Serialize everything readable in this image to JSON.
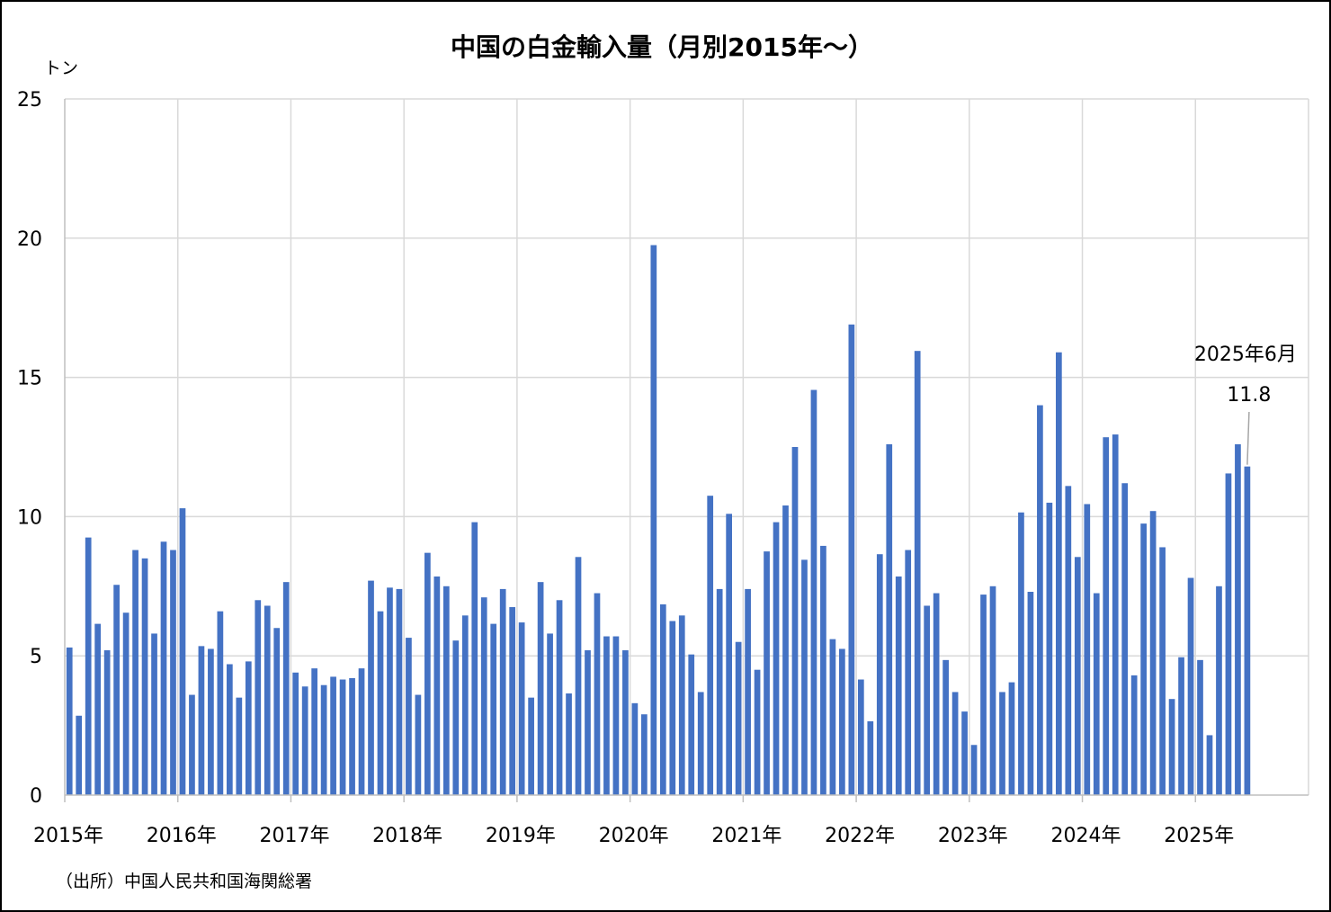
{
  "chart_data": {
    "type": "bar",
    "title": "中国の白金輸入量（月別2015年～）",
    "y_unit": "トン",
    "ylim": [
      0,
      25
    ],
    "y_ticks": [
      "0",
      "5",
      "10",
      "15",
      "20",
      "25"
    ],
    "x_tick_labels": [
      "2015年",
      "2016年",
      "2017年",
      "2018年",
      "2019年",
      "2020年",
      "2021年",
      "2022年",
      "2023年",
      "2024年",
      "2025年"
    ],
    "grid": true,
    "color": "#4472C4",
    "series": [
      {
        "values": [
          5.3,
          2.85,
          9.25,
          6.15,
          5.2,
          7.55,
          6.55,
          8.8,
          8.5,
          5.8,
          9.1,
          8.8,
          10.3,
          3.6,
          5.35,
          5.25,
          6.6,
          4.7,
          3.5,
          4.8,
          7.0,
          6.8,
          6.0,
          7.65,
          4.4,
          3.9,
          4.55,
          3.95,
          4.25,
          4.15,
          4.2,
          4.55,
          7.7,
          6.6,
          7.45,
          7.4,
          5.65,
          3.6,
          8.7,
          7.85,
          7.5,
          5.55,
          6.45,
          9.8,
          7.1,
          6.15,
          7.4,
          6.75,
          6.2,
          3.5,
          7.65,
          5.8,
          7.0,
          3.65,
          8.55,
          5.2,
          7.25,
          5.7,
          5.7,
          5.2,
          3.3,
          2.9,
          19.75,
          6.85,
          6.25,
          6.45,
          5.05,
          3.7,
          10.75,
          7.4,
          10.1,
          5.5,
          7.4,
          4.5,
          8.75,
          9.8,
          10.4,
          12.5,
          8.45,
          14.55,
          8.95,
          5.6,
          5.25,
          16.9,
          4.15,
          2.65,
          8.65,
          12.6,
          7.85,
          8.8,
          15.95,
          6.8,
          7.25,
          4.85,
          3.7,
          3.0,
          1.8,
          7.2,
          7.5,
          3.7,
          4.05,
          10.15,
          7.3,
          14.0,
          10.5,
          15.9,
          11.1,
          8.55,
          10.45,
          7.25,
          12.85,
          12.95,
          11.2,
          4.3,
          9.75,
          10.2,
          8.9,
          3.45,
          4.95,
          7.8,
          4.85,
          2.15,
          7.5,
          11.55,
          12.6,
          11.8
        ]
      }
    ],
    "annotation": {
      "label": "2025年6月",
      "value": "11.8"
    }
  },
  "source": "（出所）中国人民共和国海関総署"
}
